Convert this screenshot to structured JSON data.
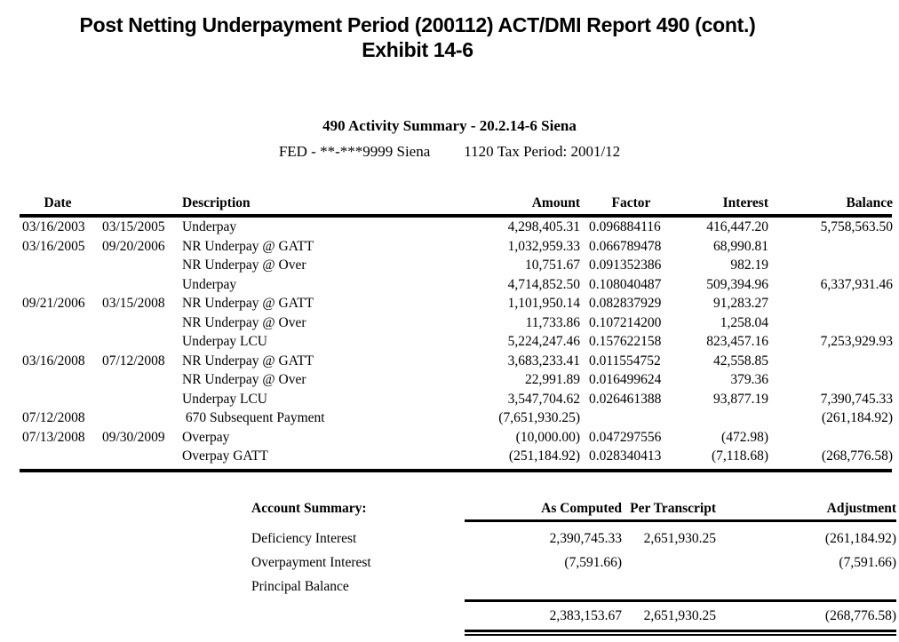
{
  "title": {
    "line1": "Post Netting Underpayment Period (200112) ACT/DMI Report 490 (cont.)",
    "line2": "Exhibit 14-6"
  },
  "report": {
    "heading": "490 Activity Summary - 20.2.14-6 Siena",
    "taxpayer": "FED - **-***9999 Siena",
    "tax_period": "1120 Tax Period: 2001/12"
  },
  "table": {
    "columns": {
      "date": "Date",
      "description": "Description",
      "amount": "Amount",
      "factor": "Factor",
      "interest": "Interest",
      "balance": "Balance"
    },
    "rows": [
      {
        "date_start": "03/16/2003",
        "date_end": "03/15/2005",
        "description": "Underpay",
        "amount": "4,298,405.31",
        "factor": "0.096884116",
        "interest": "416,447.20",
        "balance": "5,758,563.50"
      },
      {
        "date_start": "03/16/2005",
        "date_end": "09/20/2006",
        "description": "NR Underpay @ GATT",
        "amount": "1,032,959.33",
        "factor": "0.066789478",
        "interest": "68,990.81",
        "balance": ""
      },
      {
        "date_start": "",
        "date_end": "",
        "description": "NR Underpay @ Over",
        "amount": "10,751.67",
        "factor": "0.091352386",
        "interest": "982.19",
        "balance": ""
      },
      {
        "date_start": "",
        "date_end": "",
        "description": "Underpay",
        "amount": "4,714,852.50",
        "factor": "0.108040487",
        "interest": "509,394.96",
        "balance": "6,337,931.46"
      },
      {
        "date_start": "09/21/2006",
        "date_end": "03/15/2008",
        "description": "NR Underpay @ GATT",
        "amount": "1,101,950.14",
        "factor": "0.082837929",
        "interest": "91,283.27",
        "balance": ""
      },
      {
        "date_start": "",
        "date_end": "",
        "description": "NR Underpay @ Over",
        "amount": "11,733.86",
        "factor": "0.107214200",
        "interest": "1,258.04",
        "balance": ""
      },
      {
        "date_start": "",
        "date_end": "",
        "description": "Underpay LCU",
        "amount": "5,224,247.46",
        "factor": "0.157622158",
        "interest": "823,457.16",
        "balance": "7,253,929.93"
      },
      {
        "date_start": "03/16/2008",
        "date_end": "07/12/2008",
        "description": "NR Underpay @ GATT",
        "amount": "3,683,233.41",
        "factor": "0.011554752",
        "interest": "42,558.85",
        "balance": ""
      },
      {
        "date_start": "",
        "date_end": "",
        "description": "NR Underpay @ Over",
        "amount": "22,991.89",
        "factor": "0.016499624",
        "interest": "379.36",
        "balance": ""
      },
      {
        "date_start": "",
        "date_end": "",
        "description": "Underpay LCU",
        "amount": "3,547,704.62",
        "factor": "0.026461388",
        "interest": "93,877.19",
        "balance": "7,390,745.33"
      },
      {
        "date_start": "07/12/2008",
        "date_end": "",
        "description": " 670 Subsequent Payment",
        "amount": "(7,651,930.25)",
        "factor": "",
        "interest": "",
        "balance": "(261,184.92)"
      },
      {
        "date_start": "07/13/2008",
        "date_end": "09/30/2009",
        "description": "Overpay",
        "amount": "(10,000.00)",
        "factor": "0.047297556",
        "interest": "(472.98)",
        "balance": ""
      },
      {
        "date_start": "",
        "date_end": "",
        "description": "Overpay GATT",
        "amount": "(251,184.92)",
        "factor": "0.028340413",
        "interest": "(7,118.68)",
        "balance": "(268,776.58)"
      }
    ]
  },
  "summary": {
    "label": "Account Summary:",
    "columns": {
      "as_computed": "As Computed",
      "per_transcript": "Per Transcript",
      "adjustment": "Adjustment"
    },
    "rows": [
      {
        "label": "Deficiency Interest",
        "as_computed": "2,390,745.33",
        "per_transcript": "2,651,930.25",
        "adjustment": "(261,184.92)"
      },
      {
        "label": "Overpayment Interest",
        "as_computed": "(7,591.66)",
        "per_transcript": "",
        "adjustment": "(7,591.66)"
      },
      {
        "label": "Principal Balance",
        "as_computed": "",
        "per_transcript": "",
        "adjustment": ""
      }
    ],
    "total": {
      "as_computed": "2,383,153.67",
      "per_transcript": "2,651,930.25",
      "adjustment": "(268,776.58)"
    }
  },
  "colors": {
    "ink": "#000000",
    "paper": "#ffffff"
  }
}
